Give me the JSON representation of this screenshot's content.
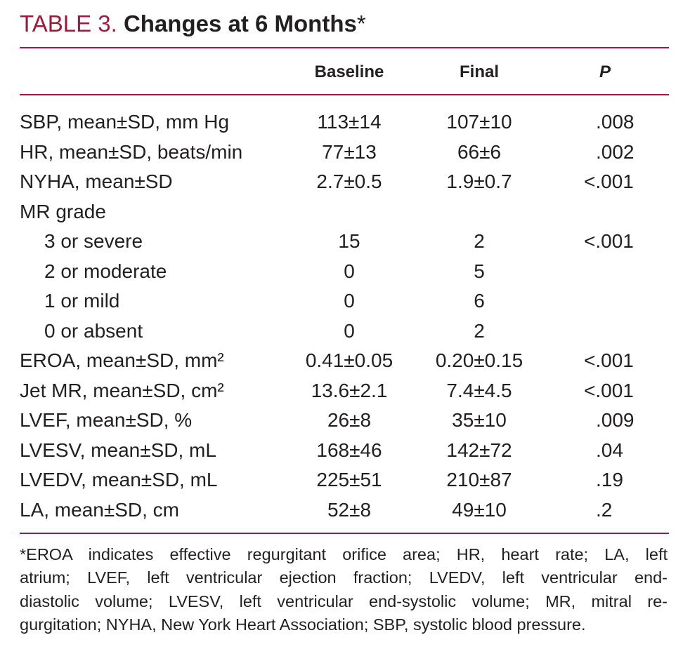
{
  "title": {
    "label": "TABLE 3.",
    "text": "Changes at 6 Months",
    "mark": "*"
  },
  "table": {
    "header": [
      "Baseline",
      "Final",
      "P"
    ],
    "rows": [
      [
        "SBP, mean±SD, mm Hg",
        "113±14",
        "107±10",
        ".008"
      ],
      [
        "HR, mean±SD, beats/min",
        "77±13",
        "66±6",
        ".002"
      ],
      [
        "NYHA, mean±SD",
        "2.7±0.5",
        "1.9±0.7",
        "<.001"
      ],
      {
        "label": "MR grade",
        "rows": [
          [
            "3 or severe",
            "15",
            "2",
            "<.001"
          ],
          [
            "2 or moderate",
            "0",
            "5"
          ],
          [
            "1 or mild",
            "0",
            "6"
          ],
          [
            "0 or absent",
            "0",
            "2"
          ]
        ]
      },
      [
        "EROA, mean±SD, mm²",
        "0.41±0.05",
        "0.20±0.15",
        "<.001"
      ],
      [
        "Jet MR, mean±SD, cm²",
        "13.6±2.1",
        "7.4±4.5",
        "<.001"
      ],
      [
        "LVEF, mean±SD, %",
        "26±8",
        "35±10",
        ".009"
      ],
      [
        "LVESV, mean±SD, mL",
        "168±46",
        "142±72",
        ".04"
      ],
      [
        "LVEDV, mean±SD, mL",
        "225±51",
        "210±87",
        ".19"
      ],
      [
        "LA, mean±SD, cm",
        "52±8",
        "49±10",
        ".2"
      ]
    ]
  },
  "footnote": [
    "*EROA indicates effective regurgitant orifice area; HR, heart rate; LA, left",
    "atrium; LVEF, left ventricular ejection fraction; LVEDV, left ventricular end-",
    "diastolic volume; LVESV, left ventricular end-systolic volume; MR, mitral re-",
    "gurgitation; NYHA, New York Heart Association; SBP, systolic blood pressure."
  ]
}
